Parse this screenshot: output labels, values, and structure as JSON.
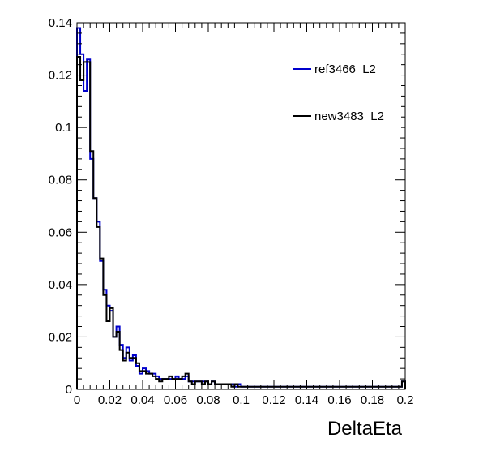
{
  "chart_data": {
    "type": "line",
    "histogram_style": "step",
    "title": "",
    "xlabel": "DeltaEta",
    "ylabel": "",
    "xlim": [
      0,
      0.2
    ],
    "ylim": [
      0,
      0.14
    ],
    "x_ticks": [
      "0",
      "0.02",
      "0.04",
      "0.06",
      "0.08",
      "0.1",
      "0.12",
      "0.14",
      "0.16",
      "0.18",
      "0.2"
    ],
    "y_ticks": [
      "0",
      "0.02",
      "0.04",
      "0.06",
      "0.08",
      "0.1",
      "0.12",
      "0.14"
    ],
    "grid": false,
    "legend_position": "top-right",
    "bin_width": 0.002,
    "series": [
      {
        "name": "ref3466_L2",
        "color": "#0000cc",
        "values": [
          0.138,
          0.128,
          0.114,
          0.126,
          0.088,
          0.073,
          0.064,
          0.049,
          0.038,
          0.032,
          0.03,
          0.02,
          0.024,
          0.017,
          0.012,
          0.016,
          0.011,
          0.013,
          0.009,
          0.006,
          0.008,
          0.007,
          0.006,
          0.006,
          0.005,
          0.004,
          0.004,
          0.004,
          0.004,
          0.004,
          0.005,
          0.004,
          0.004,
          0.005,
          0.003,
          0.003,
          0.003,
          0.003,
          0.003,
          0.003,
          0.002,
          0.003,
          0.002,
          0.002,
          0.002,
          0.002,
          0.002,
          0.002,
          0.001,
          0.002,
          0.001,
          0.001,
          0.001,
          0.001,
          0.001,
          0.001,
          0.001,
          0.001,
          0.001,
          0.001,
          0.001,
          0.001,
          0.001,
          0.001,
          0.001,
          0.001,
          0.001,
          0.001,
          0.001,
          0.001,
          0.001,
          0.001,
          0.001,
          0.001,
          0.001,
          0.001,
          0.001,
          0.001,
          0.001,
          0.001,
          0.001,
          0.001,
          0.001,
          0.001,
          0.001,
          0.001,
          0.001,
          0.001,
          0.001,
          0.001,
          0.001,
          0.001,
          0.001,
          0.001,
          0.001,
          0.001,
          0.001,
          0.001,
          0.001,
          0.003
        ]
      },
      {
        "name": "new3483_L2",
        "color": "#000000",
        "values": [
          0.127,
          0.118,
          0.125,
          0.125,
          0.091,
          0.073,
          0.062,
          0.05,
          0.036,
          0.026,
          0.031,
          0.02,
          0.022,
          0.015,
          0.011,
          0.014,
          0.012,
          0.012,
          0.01,
          0.007,
          0.007,
          0.006,
          0.006,
          0.005,
          0.004,
          0.003,
          0.004,
          0.004,
          0.005,
          0.004,
          0.004,
          0.004,
          0.005,
          0.006,
          0.003,
          0.002,
          0.003,
          0.003,
          0.002,
          0.003,
          0.002,
          0.003,
          0.002,
          0.002,
          0.002,
          0.002,
          0.002,
          0.001,
          0.002,
          0.001,
          0.001,
          0.001,
          0.001,
          0.001,
          0.001,
          0.001,
          0.001,
          0.001,
          0.001,
          0.001,
          0.001,
          0.001,
          0.001,
          0.001,
          0.001,
          0.001,
          0.001,
          0.001,
          0.001,
          0.001,
          0.001,
          0.001,
          0.001,
          0.001,
          0.001,
          0.001,
          0.001,
          0.001,
          0.001,
          0.001,
          0.001,
          0.001,
          0.001,
          0.001,
          0.001,
          0.001,
          0.001,
          0.001,
          0.001,
          0.001,
          0.001,
          0.001,
          0.001,
          0.001,
          0.001,
          0.001,
          0.001,
          0.001,
          0.001,
          0.003
        ]
      }
    ]
  }
}
